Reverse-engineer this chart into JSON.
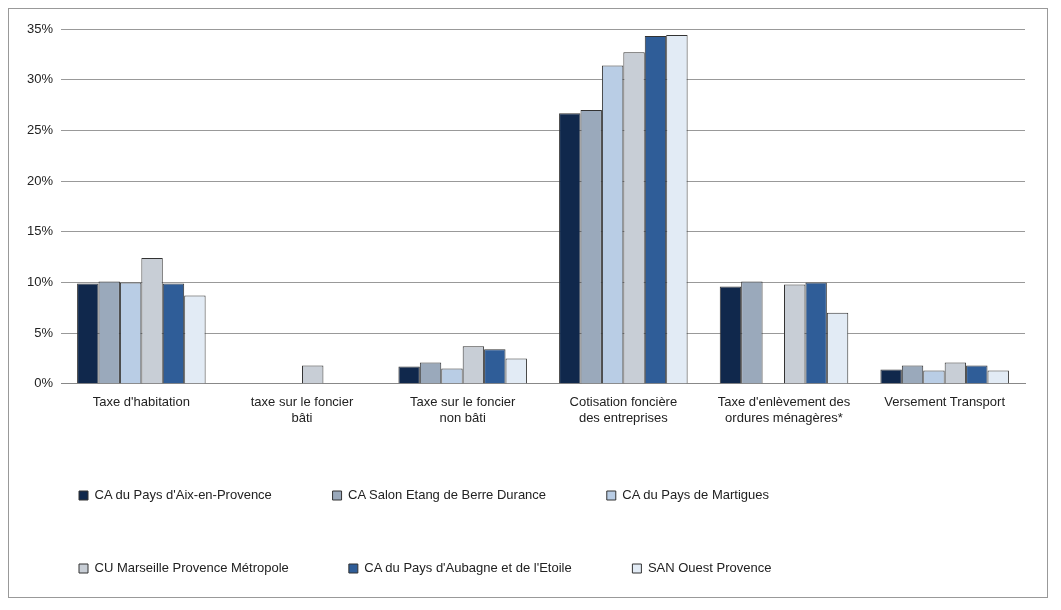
{
  "chart_data": {
    "type": "bar",
    "categories": [
      "Taxe d'habitation",
      "taxe sur le foncier bâti",
      "Taxe sur le foncier non bâti",
      "Cotisation foncière des entreprises",
      "Taxe d'enlèvement des ordures ménagères*",
      "Versement Transport"
    ],
    "series": [
      {
        "name": "CA du Pays d'Aix-en-Provence",
        "color": "#10284c",
        "values": [
          9.9,
          null,
          1.7,
          26.7,
          9.6,
          1.4
        ]
      },
      {
        "name": "CA Salon Etang de Berre Durance",
        "color": "#9aa9bb",
        "values": [
          10.1,
          null,
          2.1,
          27.0,
          10.1,
          1.8
        ]
      },
      {
        "name": "CA du Pays de Martigues",
        "color": "#b9cde5",
        "values": [
          10.0,
          null,
          1.5,
          31.4,
          null,
          1.3
        ]
      },
      {
        "name": "CU Marseille Provence Métropole",
        "color": "#c8ced6",
        "values": [
          12.4,
          1.8,
          3.7,
          32.7,
          9.8,
          2.1
        ]
      },
      {
        "name": "CA du Pays d'Aubagne et de l'Etoile",
        "color": "#2f5d98",
        "values": [
          9.9,
          null,
          3.4,
          34.3,
          10.0,
          1.8
        ]
      },
      {
        "name": "SAN Ouest Provence",
        "color": "#e2ebf5",
        "values": [
          8.7,
          null,
          2.5,
          34.4,
          7.0,
          1.3
        ]
      }
    ],
    "ylim": [
      0,
      35
    ],
    "yticks": [
      {
        "value": 0,
        "label": "0%"
      },
      {
        "value": 5,
        "label": "5%"
      },
      {
        "value": 10,
        "label": "10%"
      },
      {
        "value": 15,
        "label": "15%"
      },
      {
        "value": 20,
        "label": "20%"
      },
      {
        "value": 25,
        "label": "25%"
      },
      {
        "value": 30,
        "label": "30%"
      },
      {
        "value": 35,
        "label": "35%"
      }
    ],
    "grid": "y",
    "legend": "bottom"
  }
}
